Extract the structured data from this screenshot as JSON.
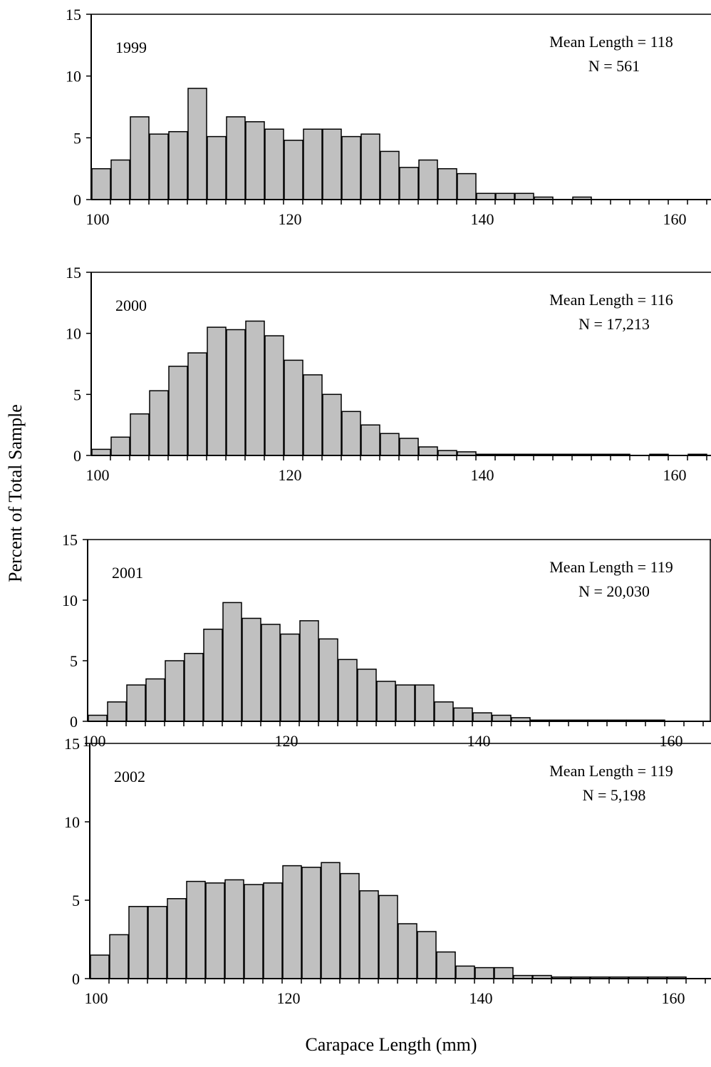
{
  "figure": {
    "ylabel": "Percent of Total Sample",
    "xlabel": "Carapace Length  (mm)"
  },
  "chart_data": [
    {
      "type": "bar",
      "panel_label": "1999",
      "mean_label": "Mean Length = 118",
      "n_label": "N = 561",
      "x": [
        100,
        102,
        104,
        106,
        108,
        110,
        112,
        114,
        116,
        118,
        120,
        122,
        124,
        126,
        128,
        130,
        132,
        134,
        136,
        138,
        140,
        142,
        144,
        146,
        148,
        150,
        152,
        154,
        156,
        158,
        160,
        162
      ],
      "values": [
        2.5,
        3.2,
        6.7,
        5.3,
        5.5,
        9.0,
        5.1,
        6.7,
        6.3,
        5.7,
        4.8,
        5.7,
        5.7,
        5.1,
        5.3,
        3.9,
        2.6,
        3.2,
        2.5,
        2.1,
        0.5,
        0.5,
        0.5,
        0.2,
        0,
        0.2,
        0,
        0,
        0,
        0,
        0,
        0
      ],
      "xticks": [
        100,
        120,
        140,
        160
      ],
      "yticks": [
        0,
        5,
        10,
        15
      ],
      "xlim": [
        99,
        163
      ],
      "ylim": [
        0,
        15
      ]
    },
    {
      "type": "bar",
      "panel_label": "2000",
      "mean_label": "Mean Length = 116",
      "n_label": "N = 17,213",
      "x": [
        100,
        102,
        104,
        106,
        108,
        110,
        112,
        114,
        116,
        118,
        120,
        122,
        124,
        126,
        128,
        130,
        132,
        134,
        136,
        138,
        140,
        142,
        144,
        146,
        148,
        150,
        152,
        154,
        156,
        158,
        160,
        162
      ],
      "values": [
        0.5,
        1.5,
        3.4,
        5.3,
        7.3,
        8.4,
        10.5,
        10.3,
        11.0,
        9.8,
        7.8,
        6.6,
        5.0,
        3.6,
        2.5,
        1.8,
        1.4,
        0.7,
        0.4,
        0.3,
        0.1,
        0.1,
        0.1,
        0.1,
        0.1,
        0.1,
        0.1,
        0.1,
        0,
        0.1,
        0,
        0.1
      ],
      "xticks": [
        100,
        120,
        140,
        160
      ],
      "yticks": [
        0,
        5,
        10,
        15
      ],
      "xlim": [
        99,
        163
      ],
      "ylim": [
        0,
        15
      ]
    },
    {
      "type": "bar",
      "panel_label": "2001",
      "mean_label": "Mean Length = 119",
      "n_label": "N = 20,030",
      "x": [
        100,
        102,
        104,
        106,
        108,
        110,
        112,
        114,
        116,
        118,
        120,
        122,
        124,
        126,
        128,
        130,
        132,
        134,
        136,
        138,
        140,
        142,
        144,
        146,
        148,
        150,
        152,
        154,
        156,
        158,
        160,
        162
      ],
      "values": [
        0.5,
        1.6,
        3.0,
        3.5,
        5.0,
        5.6,
        7.6,
        9.8,
        8.5,
        8.0,
        7.2,
        8.3,
        6.8,
        5.1,
        4.3,
        3.3,
        3.0,
        3.0,
        1.6,
        1.1,
        0.7,
        0.5,
        0.3,
        0.1,
        0.1,
        0.1,
        0.1,
        0.1,
        0.1,
        0.1,
        0,
        0
      ],
      "xticks": [
        100,
        120,
        140,
        160
      ],
      "yticks": [
        0,
        5,
        10,
        15
      ],
      "xlim": [
        99,
        163
      ],
      "ylim": [
        0,
        15
      ]
    },
    {
      "type": "bar",
      "panel_label": "2002",
      "mean_label": "Mean Length = 119",
      "n_label": "N = 5,198",
      "x": [
        100,
        102,
        104,
        106,
        108,
        110,
        112,
        114,
        116,
        118,
        120,
        122,
        124,
        126,
        128,
        130,
        132,
        134,
        136,
        138,
        140,
        142,
        144,
        146,
        148,
        150,
        152,
        154,
        156,
        158,
        160,
        162
      ],
      "values": [
        1.5,
        2.8,
        4.6,
        4.6,
        5.1,
        6.2,
        6.1,
        6.3,
        6.0,
        6.1,
        7.2,
        7.1,
        7.4,
        6.7,
        5.6,
        5.3,
        3.5,
        3.0,
        1.7,
        0.8,
        0.7,
        0.7,
        0.2,
        0.2,
        0.1,
        0.1,
        0.1,
        0.1,
        0.1,
        0.1,
        0.1,
        0
      ],
      "xticks": [
        100,
        120,
        140,
        160
      ],
      "yticks": [
        0,
        5,
        10,
        15
      ],
      "xlim": [
        99,
        163
      ],
      "ylim": [
        0,
        15
      ]
    }
  ],
  "style": {
    "bar_fill": "#c0c0c0",
    "bar_stroke": "#000000",
    "axis_color": "#000000",
    "background": "#ffffff"
  }
}
